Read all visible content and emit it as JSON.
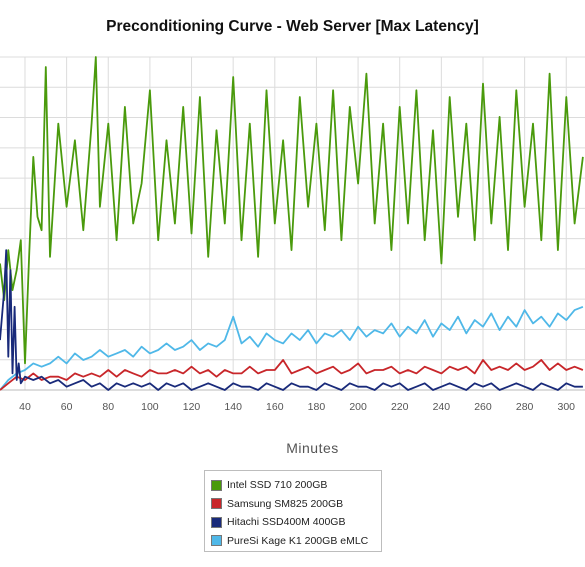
{
  "chart_data": {
    "type": "line",
    "title": "Preconditioning Curve - Web Server [Max Latency]",
    "xlabel": "Minutes",
    "ylabel": "",
    "x_ticks": [
      40,
      60,
      80,
      100,
      120,
      140,
      160,
      180,
      200,
      220,
      240,
      260,
      280,
      300
    ],
    "xlim": [
      28,
      309
    ],
    "ylim": [
      0,
      1
    ],
    "y_axis_note": "y-axis tick labels are not visible in the screenshot; values are relative heights (0 = bottom of plot, 1 = top of plot)",
    "grid": true,
    "legend_position": "bottom",
    "series": [
      {
        "name": "Intel SSD 710 200GB",
        "color": "#4a9a0c",
        "x": [
          28,
          30,
          32,
          34,
          36,
          38,
          40,
          42,
          44,
          46,
          48,
          50,
          52,
          56,
          60,
          64,
          68,
          72,
          74,
          76,
          80,
          84,
          88,
          92,
          96,
          100,
          104,
          108,
          112,
          116,
          120,
          124,
          128,
          132,
          136,
          140,
          144,
          148,
          152,
          156,
          160,
          164,
          168,
          172,
          176,
          180,
          184,
          188,
          192,
          196,
          200,
          204,
          208,
          212,
          216,
          220,
          224,
          228,
          232,
          236,
          240,
          244,
          248,
          252,
          256,
          260,
          264,
          268,
          272,
          276,
          280,
          284,
          288,
          292,
          296,
          300,
          304,
          308
        ],
        "values": [
          0.38,
          0.27,
          0.42,
          0.3,
          0.36,
          0.45,
          0.08,
          0.4,
          0.7,
          0.52,
          0.48,
          0.97,
          0.4,
          0.8,
          0.55,
          0.75,
          0.48,
          0.8,
          1.0,
          0.55,
          0.8,
          0.45,
          0.85,
          0.5,
          0.62,
          0.9,
          0.45,
          0.75,
          0.5,
          0.85,
          0.47,
          0.88,
          0.4,
          0.78,
          0.5,
          0.94,
          0.45,
          0.8,
          0.4,
          0.9,
          0.5,
          0.75,
          0.42,
          0.88,
          0.55,
          0.8,
          0.48,
          0.9,
          0.45,
          0.85,
          0.62,
          0.95,
          0.5,
          0.8,
          0.42,
          0.85,
          0.5,
          0.9,
          0.45,
          0.78,
          0.38,
          0.88,
          0.52,
          0.8,
          0.45,
          0.92,
          0.5,
          0.82,
          0.42,
          0.9,
          0.55,
          0.8,
          0.45,
          0.95,
          0.42,
          0.88,
          0.5,
          0.7
        ]
      },
      {
        "name": "Samsung SM825 200GB",
        "color": "#c8262a",
        "x": [
          28,
          32,
          36,
          40,
          44,
          48,
          52,
          56,
          60,
          64,
          68,
          72,
          76,
          80,
          84,
          88,
          92,
          96,
          100,
          104,
          108,
          112,
          116,
          120,
          124,
          128,
          132,
          136,
          140,
          144,
          148,
          152,
          156,
          160,
          164,
          168,
          172,
          176,
          180,
          184,
          188,
          192,
          196,
          200,
          204,
          208,
          212,
          216,
          220,
          224,
          228,
          232,
          236,
          240,
          244,
          248,
          252,
          256,
          260,
          264,
          268,
          272,
          276,
          280,
          284,
          288,
          292,
          296,
          300,
          304,
          308
        ],
        "values": [
          0.0,
          0.02,
          0.04,
          0.03,
          0.05,
          0.03,
          0.04,
          0.04,
          0.03,
          0.05,
          0.04,
          0.05,
          0.04,
          0.06,
          0.04,
          0.06,
          0.05,
          0.04,
          0.06,
          0.05,
          0.05,
          0.06,
          0.05,
          0.07,
          0.05,
          0.06,
          0.04,
          0.06,
          0.05,
          0.05,
          0.07,
          0.05,
          0.06,
          0.06,
          0.09,
          0.05,
          0.06,
          0.07,
          0.05,
          0.06,
          0.07,
          0.05,
          0.06,
          0.08,
          0.05,
          0.06,
          0.06,
          0.07,
          0.05,
          0.06,
          0.05,
          0.07,
          0.06,
          0.05,
          0.07,
          0.06,
          0.07,
          0.05,
          0.09,
          0.06,
          0.07,
          0.06,
          0.08,
          0.06,
          0.07,
          0.09,
          0.06,
          0.08,
          0.06,
          0.07,
          0.06
        ]
      },
      {
        "name": "Hitachi SSD400M 400GB",
        "color": "#192a7a",
        "x": [
          28,
          30,
          31,
          32,
          33,
          34,
          35,
          36,
          37,
          38,
          40,
          44,
          48,
          52,
          56,
          60,
          64,
          68,
          72,
          76,
          80,
          84,
          88,
          92,
          96,
          100,
          104,
          108,
          112,
          116,
          120,
          124,
          128,
          132,
          136,
          140,
          144,
          148,
          152,
          156,
          160,
          164,
          168,
          172,
          176,
          180,
          184,
          188,
          192,
          196,
          200,
          204,
          208,
          212,
          216,
          220,
          224,
          228,
          232,
          236,
          240,
          244,
          248,
          252,
          256,
          260,
          264,
          268,
          272,
          276,
          280,
          284,
          288,
          292,
          296,
          300,
          304,
          308
        ],
        "values": [
          0.15,
          0.3,
          0.42,
          0.1,
          0.36,
          0.05,
          0.25,
          0.03,
          0.08,
          0.02,
          0.04,
          0.03,
          0.04,
          0.02,
          0.03,
          0.01,
          0.02,
          0.03,
          0.01,
          0.02,
          0.0,
          0.02,
          0.01,
          0.02,
          0.01,
          0.02,
          0.0,
          0.02,
          0.01,
          0.02,
          0.0,
          0.01,
          0.02,
          0.01,
          0.0,
          0.02,
          0.01,
          0.01,
          0.0,
          0.02,
          0.01,
          0.0,
          0.02,
          0.01,
          0.01,
          0.0,
          0.02,
          0.01,
          0.0,
          0.02,
          0.01,
          0.01,
          0.0,
          0.02,
          0.01,
          0.02,
          0.0,
          0.01,
          0.02,
          0.0,
          0.01,
          0.02,
          0.01,
          0.0,
          0.02,
          0.01,
          0.02,
          0.0,
          0.01,
          0.02,
          0.01,
          0.0,
          0.02,
          0.01,
          0.0,
          0.02,
          0.01,
          0.01
        ]
      },
      {
        "name": "PureSi Kage K1 200GB eMLC",
        "color": "#4fb8e8",
        "x": [
          28,
          32,
          36,
          40,
          44,
          48,
          52,
          56,
          60,
          64,
          68,
          72,
          76,
          80,
          84,
          88,
          92,
          96,
          100,
          104,
          108,
          112,
          116,
          120,
          124,
          128,
          132,
          136,
          140,
          144,
          148,
          152,
          156,
          160,
          164,
          168,
          172,
          176,
          180,
          184,
          188,
          192,
          196,
          200,
          204,
          208,
          212,
          216,
          220,
          224,
          228,
          232,
          236,
          240,
          244,
          248,
          252,
          256,
          260,
          264,
          268,
          272,
          276,
          280,
          284,
          288,
          292,
          296,
          300,
          304,
          308
        ],
        "values": [
          0.0,
          0.03,
          0.05,
          0.06,
          0.08,
          0.07,
          0.08,
          0.1,
          0.08,
          0.11,
          0.09,
          0.1,
          0.12,
          0.1,
          0.11,
          0.12,
          0.1,
          0.13,
          0.11,
          0.12,
          0.14,
          0.12,
          0.13,
          0.15,
          0.12,
          0.14,
          0.13,
          0.15,
          0.22,
          0.14,
          0.16,
          0.13,
          0.17,
          0.15,
          0.14,
          0.17,
          0.15,
          0.18,
          0.14,
          0.17,
          0.16,
          0.18,
          0.15,
          0.19,
          0.16,
          0.18,
          0.17,
          0.2,
          0.16,
          0.19,
          0.17,
          0.21,
          0.16,
          0.2,
          0.18,
          0.22,
          0.17,
          0.21,
          0.19,
          0.23,
          0.18,
          0.22,
          0.19,
          0.24,
          0.2,
          0.22,
          0.19,
          0.23,
          0.21,
          0.24,
          0.25
        ]
      }
    ]
  }
}
